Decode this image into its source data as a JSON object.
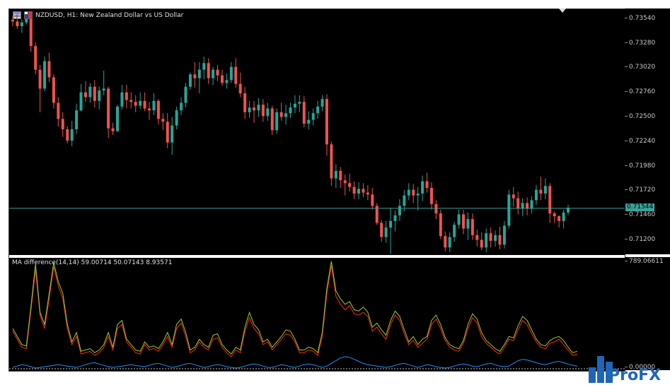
{
  "chart": {
    "symbol_title": "NZDUSD, H1:  New Zealand Dollar vs US Dollar",
    "current_price": "0.71544",
    "price_ticks": [
      "0.73540",
      "0.73280",
      "0.73020",
      "0.72760",
      "0.72500",
      "0.72240",
      "0.71980",
      "0.71720",
      "0.71460",
      "0.71200"
    ],
    "indicator_label": "MA difference(14,14) 59.00714 50.07143 8.93571",
    "indicator_ticks": [
      "789.06611",
      "0.00000"
    ],
    "colors": {
      "bull": "#26a69a",
      "bear": "#ef5350",
      "line_red": "#ff2a1a",
      "line_green": "#9acd32",
      "line_blue": "#1e90ff",
      "price_line": "#3aa39a"
    }
  },
  "chart_data": {
    "type": "candlestick",
    "title": "NZDUSD, H1:  New Zealand Dollar vs US Dollar",
    "ylim": [
      0.7105,
      0.7365
    ],
    "indicator_ylim": [
      0,
      789.06611
    ],
    "candles": [
      [
        0.7354,
        0.7358,
        0.7347,
        0.7352
      ],
      [
        0.7352,
        0.7356,
        0.7344,
        0.7347
      ],
      [
        0.7347,
        0.7354,
        0.734,
        0.7351
      ],
      [
        0.7351,
        0.7362,
        0.7349,
        0.7359
      ],
      [
        0.7359,
        0.7362,
        0.732,
        0.7326
      ],
      [
        0.7326,
        0.733,
        0.7296,
        0.7301
      ],
      [
        0.7301,
        0.7306,
        0.7256,
        0.7281
      ],
      [
        0.7281,
        0.7315,
        0.7278,
        0.731
      ],
      [
        0.731,
        0.7319,
        0.7288,
        0.7293
      ],
      [
        0.7293,
        0.7296,
        0.726,
        0.7266
      ],
      [
        0.7266,
        0.7272,
        0.7241,
        0.7249
      ],
      [
        0.7249,
        0.7256,
        0.723,
        0.7238
      ],
      [
        0.7238,
        0.7241,
        0.7223,
        0.7226
      ],
      [
        0.7226,
        0.7247,
        0.722,
        0.7238
      ],
      [
        0.7238,
        0.7265,
        0.7233,
        0.7258
      ],
      [
        0.7258,
        0.7286,
        0.7257,
        0.7277
      ],
      [
        0.7277,
        0.7289,
        0.7267,
        0.7272
      ],
      [
        0.7272,
        0.7287,
        0.7266,
        0.7283
      ],
      [
        0.7283,
        0.729,
        0.7261,
        0.7268
      ],
      [
        0.7268,
        0.7283,
        0.7259,
        0.7279
      ],
      [
        0.7279,
        0.73,
        0.7274,
        0.7281
      ],
      [
        0.7281,
        0.7283,
        0.7229,
        0.7239
      ],
      [
        0.7239,
        0.7245,
        0.7232,
        0.7236
      ],
      [
        0.7236,
        0.7264,
        0.7235,
        0.7262
      ],
      [
        0.7262,
        0.7285,
        0.7259,
        0.7277
      ],
      [
        0.7277,
        0.7285,
        0.726,
        0.7269
      ],
      [
        0.7269,
        0.7277,
        0.726,
        0.7267
      ],
      [
        0.7267,
        0.7274,
        0.7256,
        0.7263
      ],
      [
        0.7263,
        0.7277,
        0.7259,
        0.7268
      ],
      [
        0.7268,
        0.7277,
        0.7257,
        0.726
      ],
      [
        0.726,
        0.7267,
        0.7248,
        0.7258
      ],
      [
        0.7258,
        0.7276,
        0.7253,
        0.7268
      ],
      [
        0.7268,
        0.727,
        0.7243,
        0.7249
      ],
      [
        0.7249,
        0.7255,
        0.7237,
        0.7246
      ],
      [
        0.7246,
        0.7255,
        0.7218,
        0.7224
      ],
      [
        0.7224,
        0.7251,
        0.7211,
        0.7242
      ],
      [
        0.7242,
        0.7262,
        0.7238,
        0.7258
      ],
      [
        0.7258,
        0.7272,
        0.7253,
        0.7266
      ],
      [
        0.7266,
        0.7287,
        0.7261,
        0.7283
      ],
      [
        0.7283,
        0.7298,
        0.728,
        0.7296
      ],
      [
        0.7296,
        0.7309,
        0.7282,
        0.7292
      ],
      [
        0.7292,
        0.7309,
        0.7276,
        0.7301
      ],
      [
        0.7301,
        0.7315,
        0.7291,
        0.7308
      ],
      [
        0.7308,
        0.7313,
        0.7286,
        0.7292
      ],
      [
        0.7292,
        0.7304,
        0.7285,
        0.7301
      ],
      [
        0.7301,
        0.7306,
        0.7289,
        0.7295
      ],
      [
        0.7295,
        0.7301,
        0.7284,
        0.7287
      ],
      [
        0.7287,
        0.7297,
        0.7281,
        0.729
      ],
      [
        0.729,
        0.7309,
        0.7287,
        0.7304
      ],
      [
        0.7304,
        0.7313,
        0.7282,
        0.7286
      ],
      [
        0.7286,
        0.7298,
        0.7272,
        0.7276
      ],
      [
        0.7276,
        0.7283,
        0.7249,
        0.7256
      ],
      [
        0.7256,
        0.7268,
        0.725,
        0.7261
      ],
      [
        0.7261,
        0.7268,
        0.7245,
        0.7258
      ],
      [
        0.7258,
        0.7271,
        0.7251,
        0.7264
      ],
      [
        0.7264,
        0.727,
        0.7246,
        0.7252
      ],
      [
        0.7252,
        0.7266,
        0.7247,
        0.726
      ],
      [
        0.726,
        0.7263,
        0.7232,
        0.7237
      ],
      [
        0.7237,
        0.726,
        0.7233,
        0.7256
      ],
      [
        0.7256,
        0.7266,
        0.7247,
        0.7251
      ],
      [
        0.7251,
        0.7264,
        0.7243,
        0.7255
      ],
      [
        0.7255,
        0.7266,
        0.725,
        0.7261
      ],
      [
        0.7261,
        0.7274,
        0.7255,
        0.7265
      ],
      [
        0.7265,
        0.7274,
        0.7256,
        0.7267
      ],
      [
        0.7267,
        0.7273,
        0.724,
        0.7244
      ],
      [
        0.7244,
        0.7257,
        0.7238,
        0.7248
      ],
      [
        0.7248,
        0.726,
        0.7242,
        0.7255
      ],
      [
        0.7255,
        0.7268,
        0.7249,
        0.7262
      ],
      [
        0.7262,
        0.7274,
        0.7257,
        0.727
      ],
      [
        0.727,
        0.7275,
        0.721,
        0.7222
      ],
      [
        0.7222,
        0.7225,
        0.7178,
        0.7186
      ],
      [
        0.7186,
        0.7201,
        0.7176,
        0.7194
      ],
      [
        0.7194,
        0.7198,
        0.7176,
        0.7184
      ],
      [
        0.7184,
        0.719,
        0.7168,
        0.7181
      ],
      [
        0.7181,
        0.7191,
        0.7172,
        0.7177
      ],
      [
        0.7177,
        0.7183,
        0.7164,
        0.717
      ],
      [
        0.717,
        0.7182,
        0.7164,
        0.7175
      ],
      [
        0.7175,
        0.7181,
        0.7166,
        0.7171
      ],
      [
        0.7171,
        0.7179,
        0.7163,
        0.7169
      ],
      [
        0.7169,
        0.7176,
        0.7153,
        0.7157
      ],
      [
        0.7157,
        0.716,
        0.7137,
        0.7139
      ],
      [
        0.7139,
        0.7142,
        0.7119,
        0.7124
      ],
      [
        0.7124,
        0.7141,
        0.7118,
        0.7134
      ],
      [
        0.7134,
        0.7155,
        0.7106,
        0.7141
      ],
      [
        0.7141,
        0.7152,
        0.713,
        0.7147
      ],
      [
        0.7147,
        0.7164,
        0.7141,
        0.7157
      ],
      [
        0.7157,
        0.7174,
        0.7151,
        0.7168
      ],
      [
        0.7168,
        0.7181,
        0.7163,
        0.7174
      ],
      [
        0.7174,
        0.718,
        0.716,
        0.7168
      ],
      [
        0.7168,
        0.7177,
        0.7152,
        0.717
      ],
      [
        0.717,
        0.7189,
        0.7162,
        0.7183
      ],
      [
        0.7183,
        0.7192,
        0.7171,
        0.7176
      ],
      [
        0.7176,
        0.7182,
        0.7153,
        0.7159
      ],
      [
        0.7159,
        0.7163,
        0.7143,
        0.7149
      ],
      [
        0.7149,
        0.7153,
        0.7122,
        0.7125
      ],
      [
        0.7125,
        0.713,
        0.7109,
        0.7113
      ],
      [
        0.7113,
        0.7129,
        0.7108,
        0.7124
      ],
      [
        0.7124,
        0.714,
        0.7119,
        0.7137
      ],
      [
        0.7137,
        0.7153,
        0.7133,
        0.7148
      ],
      [
        0.7148,
        0.7153,
        0.7127,
        0.7133
      ],
      [
        0.7133,
        0.715,
        0.7121,
        0.7143
      ],
      [
        0.7143,
        0.7149,
        0.7121,
        0.7126
      ],
      [
        0.7126,
        0.7132,
        0.7114,
        0.7121
      ],
      [
        0.7121,
        0.7129,
        0.711,
        0.7113
      ],
      [
        0.7113,
        0.7133,
        0.7108,
        0.7128
      ],
      [
        0.7128,
        0.7134,
        0.7113,
        0.712
      ],
      [
        0.712,
        0.7131,
        0.7114,
        0.7126
      ],
      [
        0.7126,
        0.7135,
        0.7111,
        0.7116
      ],
      [
        0.7116,
        0.7141,
        0.7112,
        0.7136
      ],
      [
        0.7136,
        0.7174,
        0.7133,
        0.7169
      ],
      [
        0.7169,
        0.7177,
        0.7156,
        0.7165
      ],
      [
        0.7165,
        0.7172,
        0.7148,
        0.7154
      ],
      [
        0.7154,
        0.7165,
        0.7146,
        0.716
      ],
      [
        0.716,
        0.7166,
        0.7147,
        0.7154
      ],
      [
        0.7154,
        0.7167,
        0.7149,
        0.7163
      ],
      [
        0.7163,
        0.7179,
        0.7158,
        0.7174
      ],
      [
        0.7174,
        0.7188,
        0.7163,
        0.717
      ],
      [
        0.717,
        0.7186,
        0.7164,
        0.7178
      ],
      [
        0.7178,
        0.7181,
        0.7139,
        0.7149
      ],
      [
        0.7149,
        0.7151,
        0.7139,
        0.7146
      ],
      [
        0.7146,
        0.7147,
        0.7134,
        0.7141
      ],
      [
        0.7141,
        0.7153,
        0.7133,
        0.715
      ],
      [
        0.715,
        0.7158,
        0.7147,
        0.7155
      ]
    ],
    "series": [
      {
        "color": "#ff2a1a",
        "values": [
          280,
          220,
          160,
          150,
          430,
          740,
          400,
          300,
          520,
          760,
          620,
          520,
          300,
          180,
          240,
          110,
          120,
          130,
          100,
          120,
          160,
          240,
          140,
          300,
          330,
          200,
          160,
          120,
          110,
          180,
          140,
          150,
          130,
          180,
          240,
          160,
          300,
          340,
          240,
          120,
          140,
          200,
          160,
          140,
          220,
          230,
          160,
          120,
          90,
          140,
          120,
          280,
          380,
          300,
          260,
          180,
          200,
          140,
          180,
          220,
          260,
          250,
          200,
          120,
          120,
          140,
          130,
          100,
          240,
          560,
          770,
          540,
          480,
          440,
          470,
          410,
          400,
          420,
          390,
          280,
          310,
          260,
          220,
          330,
          400,
          360,
          260,
          180,
          210,
          160,
          190,
          220,
          330,
          370,
          300,
          210,
          160,
          140,
          130,
          190,
          300,
          380,
          340,
          240,
          190,
          160,
          130,
          110,
          160,
          220,
          210,
          290,
          360,
          330,
          260,
          200,
          160,
          150,
          190,
          200,
          220,
          180,
          140,
          100,
          110
        ]
      },
      {
        "color": "#9acd32",
        "values": [
          300,
          240,
          180,
          170,
          460,
          780,
          420,
          330,
          560,
          790,
          650,
          560,
          330,
          200,
          270,
          130,
          140,
          150,
          120,
          140,
          180,
          270,
          160,
          330,
          360,
          220,
          180,
          140,
          130,
          200,
          160,
          170,
          150,
          200,
          270,
          180,
          330,
          370,
          270,
          140,
          160,
          220,
          180,
          160,
          250,
          260,
          180,
          140,
          110,
          160,
          140,
          310,
          420,
          330,
          290,
          200,
          220,
          160,
          200,
          240,
          290,
          280,
          220,
          140,
          140,
          160,
          150,
          120,
          270,
          600,
          800,
          580,
          520,
          480,
          500,
          440,
          430,
          460,
          420,
          310,
          340,
          290,
          250,
          360,
          430,
          390,
          290,
          200,
          240,
          180,
          220,
          240,
          360,
          400,
          330,
          230,
          180,
          160,
          150,
          210,
          330,
          410,
          370,
          270,
          210,
          180,
          150,
          130,
          180,
          240,
          230,
          320,
          390,
          360,
          290,
          220,
          180,
          170,
          210,
          230,
          240,
          210,
          160,
          120,
          130
        ]
      },
      {
        "color": "#1e90ff",
        "values": [
          10,
          20,
          30,
          25,
          15,
          5,
          10,
          15,
          20,
          25,
          30,
          25,
          20,
          15,
          10,
          20,
          30,
          40,
          45,
          35,
          25,
          15,
          10,
          15,
          20,
          25,
          30,
          25,
          20,
          15,
          25,
          35,
          40,
          30,
          20,
          10,
          15,
          25,
          35,
          40,
          30,
          20,
          10,
          15,
          25,
          30,
          25,
          15,
          10,
          5,
          10,
          20,
          30,
          35,
          30,
          20,
          10,
          10,
          20,
          30,
          25,
          15,
          10,
          20,
          30,
          35,
          30,
          20,
          10,
          20,
          40,
          60,
          80,
          90,
          85,
          70,
          55,
          40,
          30,
          25,
          20,
          15,
          10,
          15,
          25,
          35,
          40,
          30,
          20,
          10,
          20,
          30,
          25,
          15,
          10,
          5,
          10,
          20,
          30,
          35,
          30,
          20,
          15,
          25,
          35,
          40,
          30,
          20,
          15,
          20,
          40,
          60,
          70,
          65,
          55,
          45,
          35,
          30,
          40,
          50,
          55,
          45,
          35,
          25,
          20
        ]
      }
    ]
  }
}
